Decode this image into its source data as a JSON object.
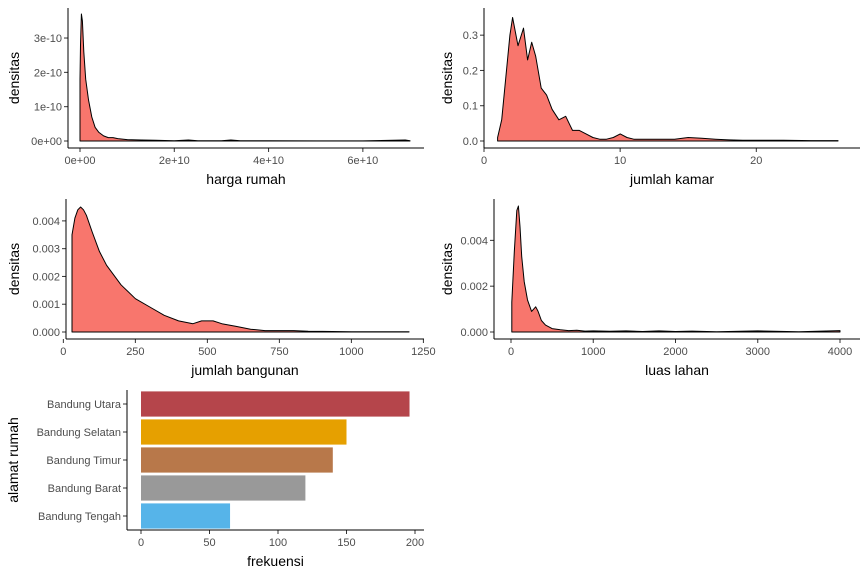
{
  "colors": {
    "density_fill": "#F8766D",
    "outline": "#000000"
  },
  "chart_data": [
    {
      "type": "area",
      "xlabel": "harga rumah",
      "ylabel": "densitas",
      "xlim": [
        0,
        70000000000
      ],
      "ylim": [
        0,
        3.7e-10
      ],
      "xticks": [
        0,
        20000000000,
        40000000000,
        60000000000
      ],
      "xtick_labels": [
        "0e+00",
        "2e+10",
        "4e+10",
        "6e+10"
      ],
      "yticks": [
        0,
        1e-10,
        2e-10,
        3e-10
      ],
      "ytick_labels": [
        "0e+00",
        "1e-10",
        "2e-10",
        "3e-10"
      ],
      "x": [
        0,
        100000000.0,
        300000000.0,
        500000000.0,
        800000000.0,
        1200000000.0,
        1800000000.0,
        2500000000.0,
        3200000000.0,
        4000000000.0,
        5000000000.0,
        6000000000.0,
        7000000000.0,
        8000000000.0,
        10000000000.0,
        13000000000.0,
        16000000000.0,
        20000000000.0,
        23000000000.0,
        25000000000.0,
        30000000000.0,
        32000000000.0,
        34000000000.0,
        40000000000.0,
        50000000000.0,
        60000000000.0,
        69000000000.0,
        70000000000.0
      ],
      "y": [
        1.8e-10,
        2.8e-10,
        3.7e-10,
        3.5e-10,
        2.6e-10,
        1.8e-10,
        1.2e-10,
        7e-11,
        4e-11,
        2.5e-11,
        1.5e-11,
        1e-11,
        1e-11,
        7e-12,
        4e-12,
        3e-12,
        2e-12,
        1e-12,
        3e-12,
        1e-12,
        1e-12,
        3e-12,
        5e-13,
        5e-13,
        3e-13,
        3e-13,
        3e-12,
        5e-13
      ]
    },
    {
      "type": "area",
      "xlabel": "jumlah kamar",
      "ylabel": "densitas",
      "xlim": [
        0,
        26
      ],
      "ylim": [
        0,
        0.36
      ],
      "xticks": [
        0,
        10,
        20
      ],
      "xtick_labels": [
        "0",
        "10",
        "20"
      ],
      "yticks": [
        0,
        0.1,
        0.2,
        0.3
      ],
      "ytick_labels": [
        "0.0",
        "0.1",
        "0.2",
        "0.3"
      ],
      "x": [
        1,
        1.3,
        1.6,
        1.9,
        2.1,
        2.5,
        2.9,
        3.2,
        3.5,
        3.8,
        4.2,
        4.6,
        5,
        5.5,
        6,
        6.5,
        7,
        7.5,
        8,
        8.5,
        9,
        9.5,
        10,
        10.5,
        11,
        12,
        13,
        14,
        15,
        16,
        17,
        18,
        19,
        20,
        22,
        24,
        26
      ],
      "y": [
        0.01,
        0.06,
        0.18,
        0.3,
        0.35,
        0.27,
        0.32,
        0.23,
        0.28,
        0.24,
        0.15,
        0.13,
        0.09,
        0.06,
        0.07,
        0.03,
        0.03,
        0.02,
        0.01,
        0.005,
        0.005,
        0.01,
        0.02,
        0.01,
        0.005,
        0.005,
        0.005,
        0.005,
        0.01,
        0.008,
        0.005,
        0.003,
        0.002,
        0.002,
        0.002,
        0.001,
        0.001
      ]
    },
    {
      "type": "area",
      "xlabel": "jumlah bangunan",
      "ylabel": "densitas",
      "xlim": [
        30,
        1200
      ],
      "ylim": [
        0,
        0.0045
      ],
      "xticks": [
        0,
        250,
        500,
        750,
        1000,
        1250
      ],
      "xtick_labels": [
        "0",
        "250",
        "500",
        "750",
        "1000",
        "1250"
      ],
      "yticks": [
        0,
        0.001,
        0.002,
        0.003,
        0.004
      ],
      "ytick_labels": [
        "0.000",
        "0.001",
        "0.002",
        "0.003",
        "0.004"
      ],
      "x": [
        30,
        40,
        50,
        60,
        70,
        80,
        100,
        125,
        150,
        200,
        250,
        300,
        350,
        400,
        450,
        480,
        500,
        520,
        550,
        600,
        650,
        700,
        750,
        800,
        850,
        900,
        1000,
        1100,
        1200
      ],
      "y": [
        0.0035,
        0.0041,
        0.0044,
        0.0045,
        0.0044,
        0.0042,
        0.0036,
        0.0029,
        0.0024,
        0.0017,
        0.0012,
        0.0009,
        0.0006,
        0.0004,
        0.0003,
        0.0004,
        0.0004,
        0.0004,
        0.0003,
        0.0002,
        0.0001,
        5e-05,
        5e-05,
        5e-05,
        3e-05,
        2e-05,
        1e-05,
        1e-05,
        1e-05
      ]
    },
    {
      "type": "area",
      "xlabel": "luas lahan",
      "ylabel": "densitas",
      "xlim": [
        0,
        4000
      ],
      "ylim": [
        0,
        0.0055
      ],
      "xticks": [
        0,
        1000,
        2000,
        3000,
        4000
      ],
      "xtick_labels": [
        "0",
        "1000",
        "2000",
        "3000",
        "4000"
      ],
      "yticks": [
        0,
        0.002,
        0.004
      ],
      "ytick_labels": [
        "0.000",
        "0.002",
        "0.004"
      ],
      "x": [
        10,
        40,
        70,
        90,
        110,
        130,
        160,
        200,
        250,
        300,
        330,
        370,
        420,
        500,
        600,
        700,
        800,
        900,
        1000,
        1200,
        1400,
        1600,
        1800,
        2000,
        2200,
        2500,
        3000,
        3500,
        4000
      ],
      "y": [
        0.0013,
        0.0035,
        0.0053,
        0.0055,
        0.0046,
        0.0033,
        0.0022,
        0.0014,
        0.0009,
        0.0011,
        0.0009,
        0.0005,
        0.0003,
        0.00015,
        0.0001,
        6e-05,
        8e-05,
        4e-05,
        5e-05,
        3e-05,
        5e-05,
        2e-05,
        5e-05,
        2e-05,
        4e-05,
        1e-05,
        5e-05,
        1e-05,
        6e-05
      ]
    },
    {
      "type": "bar",
      "orientation": "horizontal",
      "xlabel": "frekuensi",
      "ylabel": "alamat rumah",
      "xlim": [
        0,
        200
      ],
      "xticks": [
        0,
        50,
        100,
        150,
        200
      ],
      "xtick_labels": [
        "0",
        "50",
        "100",
        "150",
        "200"
      ],
      "categories": [
        "Bandung Utara",
        "Bandung Selatan",
        "Bandung Timur",
        "Bandung Barat",
        "Bandung Tengah"
      ],
      "values": [
        196,
        150,
        140,
        120,
        65
      ],
      "colors": [
        "#B5454B",
        "#E6A000",
        "#B8784A",
        "#999999",
        "#56B4E9"
      ]
    }
  ]
}
